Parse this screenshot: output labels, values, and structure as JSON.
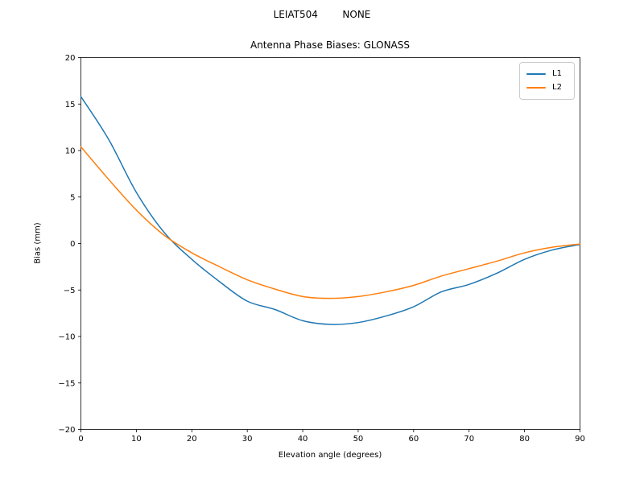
{
  "figure": {
    "suptitle": "LEIAT504        NONE",
    "title": "Antenna Phase Biases: GLONASS"
  },
  "chart_data": {
    "type": "line",
    "suptitle": "LEIAT504        NONE",
    "title": "Antenna Phase Biases: GLONASS",
    "xlabel": "Elevation angle (degrees)",
    "ylabel": "Bias (mm)",
    "xlim": [
      0,
      90
    ],
    "ylim": [
      -20,
      20
    ],
    "grid": false,
    "legend_position": "upper right",
    "x_tick_values": [
      0,
      10,
      20,
      30,
      40,
      50,
      60,
      70,
      80,
      90
    ],
    "x_tick_labels": [
      "0",
      "10",
      "20",
      "30",
      "40",
      "50",
      "60",
      "70",
      "80",
      "90"
    ],
    "y_tick_values": [
      -20,
      -15,
      -10,
      -5,
      0,
      5,
      10,
      15,
      20
    ],
    "y_tick_labels": [
      "−20",
      "−15",
      "−10",
      "−5",
      "0",
      "5",
      "10",
      "15",
      "20"
    ],
    "x": [
      0,
      5,
      10,
      15,
      20,
      25,
      30,
      35,
      40,
      45,
      50,
      55,
      60,
      65,
      70,
      75,
      80,
      85,
      90
    ],
    "series": [
      {
        "name": "L1",
        "color": "#1f77b4",
        "values": [
          15.8,
          11.2,
          5.5,
          1.2,
          -1.7,
          -4.1,
          -6.2,
          -7.1,
          -8.3,
          -8.7,
          -8.5,
          -7.8,
          -6.8,
          -5.2,
          -4.4,
          -3.2,
          -1.7,
          -0.7,
          -0.1
        ]
      },
      {
        "name": "L2",
        "color": "#ff7f0e",
        "values": [
          10.4,
          6.9,
          3.6,
          0.9,
          -1.0,
          -2.5,
          -3.9,
          -4.9,
          -5.7,
          -5.9,
          -5.7,
          -5.2,
          -4.5,
          -3.5,
          -2.7,
          -1.9,
          -1.0,
          -0.4,
          -0.05
        ]
      }
    ]
  }
}
